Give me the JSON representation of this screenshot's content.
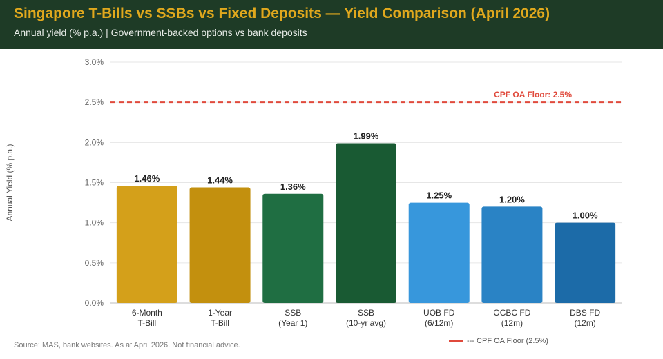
{
  "header": {
    "title": "Singapore T-Bills vs SSBs vs Fixed Deposits — Yield Comparison (April 2026)",
    "subtitle": "Annual yield (% p.a.) | Government-backed options vs bank deposits"
  },
  "footer": {
    "source": "Source: MAS, bank websites. As at April 2026. Not financial advice."
  },
  "legend": {
    "label": "--- CPF OA Floor (2.5%)"
  },
  "colors": {
    "header_bg": "#1e3b26",
    "title": "#e0a81d",
    "reference_line": "#e04a3c"
  },
  "chart_data": {
    "type": "bar",
    "categories": [
      [
        "6-Month",
        "T-Bill"
      ],
      [
        "1-Year",
        "T-Bill"
      ],
      [
        "SSB",
        "(Year 1)"
      ],
      [
        "SSB",
        "(10-yr avg)"
      ],
      [
        "UOB FD",
        "(6/12m)"
      ],
      [
        "OCBC FD",
        "(12m)"
      ],
      [
        "DBS FD",
        "(12m)"
      ]
    ],
    "values": [
      1.46,
      1.44,
      1.36,
      1.99,
      1.25,
      1.2,
      1.0
    ],
    "value_labels": [
      "1.46%",
      "1.44%",
      "1.36%",
      "1.99%",
      "1.25%",
      "1.20%",
      "1.00%"
    ],
    "bar_colors": [
      "#d4a01a",
      "#c3900e",
      "#1f6e42",
      "#195a33",
      "#3797dc",
      "#2a83c5",
      "#1c6ba8"
    ],
    "ylabel": "Annual Yield (% p.a.)",
    "ylim": [
      0,
      3.0
    ],
    "yticks": [
      0,
      0.5,
      1.0,
      1.5,
      2.0,
      2.5,
      3.0
    ],
    "ytick_labels": [
      "0.0%",
      "0.5%",
      "1.0%",
      "1.5%",
      "2.0%",
      "2.5%",
      "3.0%"
    ],
    "reference_line": {
      "value": 2.5,
      "label": "CPF OA Floor: 2.5%"
    },
    "grid": true,
    "legend_position": "bottom-right"
  }
}
